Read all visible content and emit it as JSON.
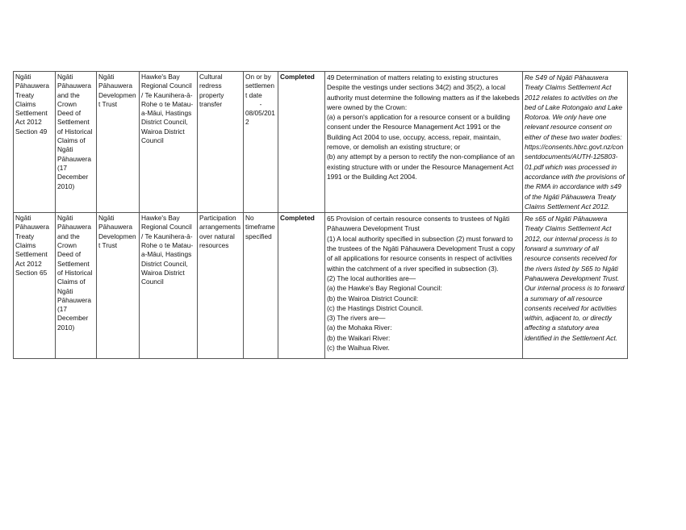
{
  "rows": [
    {
      "legislation": "Ngāti Pāhauwera Treaty Claims Settlement Act 2012 Section 49",
      "deed": "Ngāti Pāhauwera and the Crown Deed of Settlement of Historical Claims of Ngāti Pāhauwera (17 December 2010)",
      "entity": "Ngāti Pāhauwera Development Trust",
      "councils": "Hawke's Bay Regional Council / Te Kaunihera-ā-Rohe o te Matau-a-Māui, Hastings District Council, Wairoa District Council",
      "type": "Cultural redress property transfer",
      "timeframe": [
        "On or by settlement date",
        "-",
        "08/05/2012"
      ],
      "status": "Completed",
      "provision": [
        "49 Determination of matters relating to existing structures",
        "Despite the vestings under sections 34(2) and 35(2), a local authority must determine the following matters as if the lakebeds were owned by the Crown:",
        "(a) a person's application for a resource consent or a building consent under the Resource Management Act 1991 or the Building Act 2004 to use, occupy, access, repair, maintain, remove, or demolish an existing structure; or",
        "(b) any attempt by a person to rectify the non-compliance of an existing structure with or under the Resource Management Act 1991 or the Building Act 2004."
      ],
      "note": "Re S49 of Ngāti Pāhauwera Treaty Claims Settlement Act 2012 relates to activities on the bed of Lake Rotongaio and Lake Rotoroa. We only have one relevant resource consent on either of these two water bodies: https://consents.hbrc.govt.nz/consentdocuments/AUTH-125803-01.pdf which was processed in accordance with the provisions of the RMA in accordance with s49 of the Ngāti Pāhauwera Treaty Claims Settlement Act 2012."
    },
    {
      "legislation": "Ngāti Pāhauwera Treaty Claims Settlement Act 2012 Section 65",
      "deed": "Ngāti Pāhauwera and the Crown Deed of Settlement of Historical Claims of Ngāti Pāhauwera (17 December 2010)",
      "entity": "Ngāti Pāhauwera Development Trust",
      "councils": "Hawke's Bay Regional Council / Te Kaunihera-ā-Rohe o te Matau-a-Māui, Hastings District Council, Wairoa District Council",
      "type": "Participation arrangements over natural resources",
      "timeframe": [
        "No timeframe specified"
      ],
      "status": "Completed",
      "provision": [
        "65 Provision of certain resource consents to trustees of Ngāti Pāhauwera Development Trust",
        "(1) A local authority specified in subsection (2) must forward to the trustees of the Ngāti Pāhauwera Development Trust a copy of all applications for resource consents in respect of activities within the catchment of a river specified in subsection (3).",
        "(2) The local authorities are—",
        "(a) the Hawke's Bay Regional Council:",
        "(b) the Wairoa District Council:",
        "(c) the Hastings District Council.",
        "(3) The rivers are—",
        "(a) the Mohaka River:",
        "(b) the Waikari River:",
        "(c) the Waihua River."
      ],
      "note": "Re s65 of Ngāti Pāhauwera Treaty Claims Settlement Act 2012, our internal process is to forward a summary of all resource consents received for the rivers listed by S65 to Ngāti Pahauwera Development Trust. Our internal process is to forward a summary of all resource consents received for activities within, adjacent to, or directly affecting a statutory area identified in the Settlement Act."
    }
  ]
}
